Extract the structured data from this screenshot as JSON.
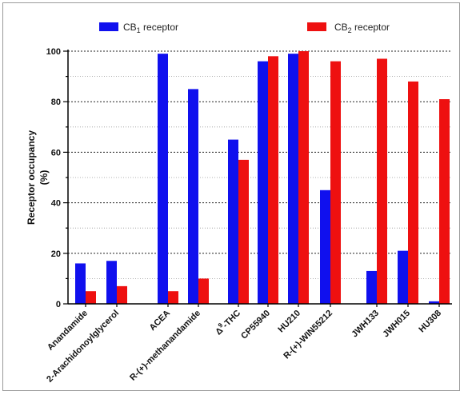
{
  "chart_data": {
    "type": "bar",
    "ylabel_line1": "Receptor occupancy",
    "ylabel_line2": "(%)",
    "ylim": [
      0,
      100
    ],
    "yticks": [
      "0",
      "20",
      "40",
      "60",
      "80",
      "100"
    ],
    "grid": "dotted horizontal",
    "legend_position": "top",
    "categories": [
      "Anandamide",
      "2-Arachidonoylglycerol",
      "ACEA",
      "R-(+)-methanandamide",
      "Δ9-THC",
      "CP55940",
      "HU210",
      "R-(+)-WIN55212",
      "JWH133",
      "JWH015",
      "HU308"
    ],
    "series": [
      {
        "name": "CB1 receptor",
        "legend_main": "CB",
        "legend_sub": "1",
        "legend_rest": " receptor",
        "color": "#1010ee",
        "values": [
          16,
          17,
          99,
          85,
          65,
          96,
          99,
          45,
          13,
          21,
          1
        ]
      },
      {
        "name": "CB2 receptor",
        "legend_main": "CB",
        "legend_sub": "2",
        "legend_rest": " receptor",
        "color": "#ee1010",
        "values": [
          5,
          7,
          5,
          10,
          57,
          98,
          100,
          96,
          97,
          88,
          81
        ]
      }
    ],
    "thc_label": {
      "prefix": "Δ",
      "sup": "9",
      "rest": "-THC"
    }
  }
}
